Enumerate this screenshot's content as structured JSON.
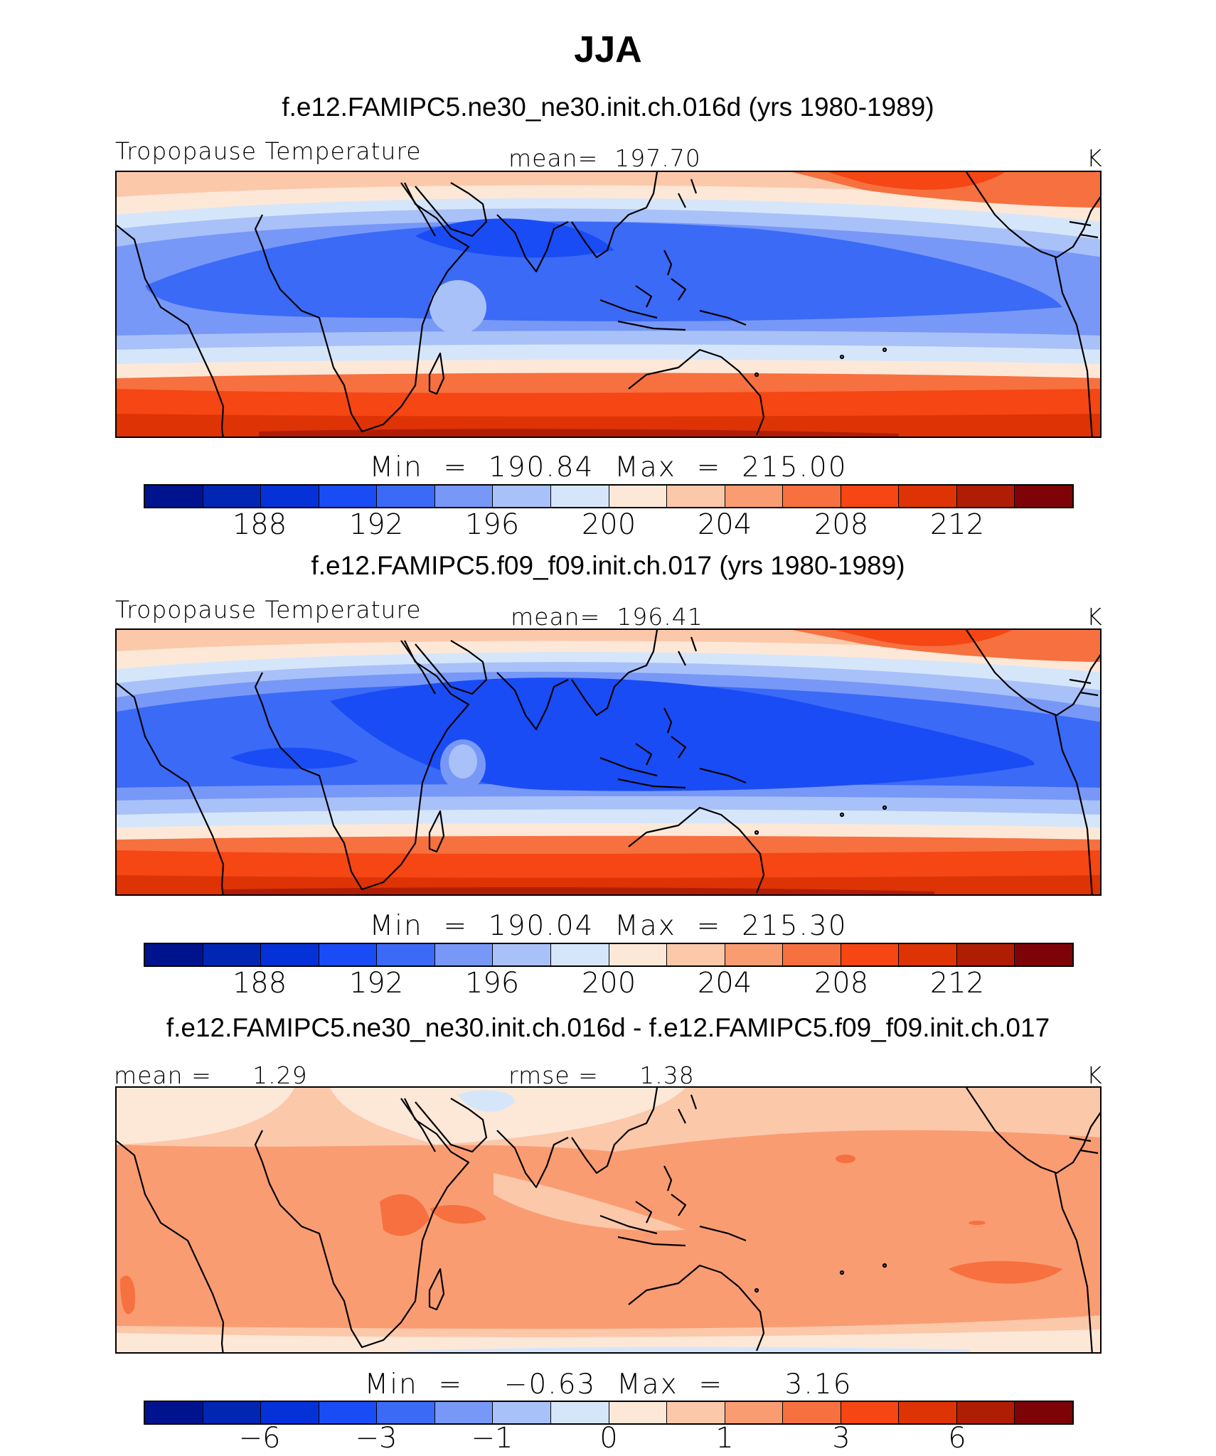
{
  "title": "JJA",
  "colors": [
    "#00138f",
    "#0226b4",
    "#0432d8",
    "#1a4cf5",
    "#3b6af7",
    "#7898f7",
    "#a9c1f9",
    "#d6e6fa",
    "#fde8d8",
    "#fcc8aa",
    "#fa9c72",
    "#f7703f",
    "#f54614",
    "#dd3305",
    "#b01d05",
    "#7e0306"
  ],
  "panels": [
    {
      "case": "f.e12.FAMIPC5.ne30_ne30.init.ch.016d (yrs 1980-1989)",
      "variable": "Tropopause Temperature",
      "stat": "mean=  197.70",
      "units": "K",
      "minmax": "Min  =  190.84  Max  =  215.00",
      "ticks": [
        "188",
        "192",
        "196",
        "200",
        "204",
        "208",
        "212"
      ]
    },
    {
      "case": "f.e12.FAMIPC5.f09_f09.init.ch.017 (yrs 1980-1989)",
      "variable": "Tropopause Temperature",
      "stat": "mean=  196.41",
      "units": "K",
      "minmax": "Min  =  190.04  Max  =  215.30",
      "ticks": [
        "188",
        "192",
        "196",
        "200",
        "204",
        "208",
        "212"
      ]
    },
    {
      "case": "f.e12.FAMIPC5.ne30_ne30.init.ch.016d - f.e12.FAMIPC5.f09_f09.init.ch.017",
      "stat_left": "mean =     1.29",
      "stat": "rmse =     1.38",
      "units": "K",
      "minmax": "Min  =    −0.63  Max  =      3.16",
      "ticks": [
        "−6",
        "−3",
        "−1",
        "0",
        "1",
        "3",
        "6"
      ]
    }
  ]
}
